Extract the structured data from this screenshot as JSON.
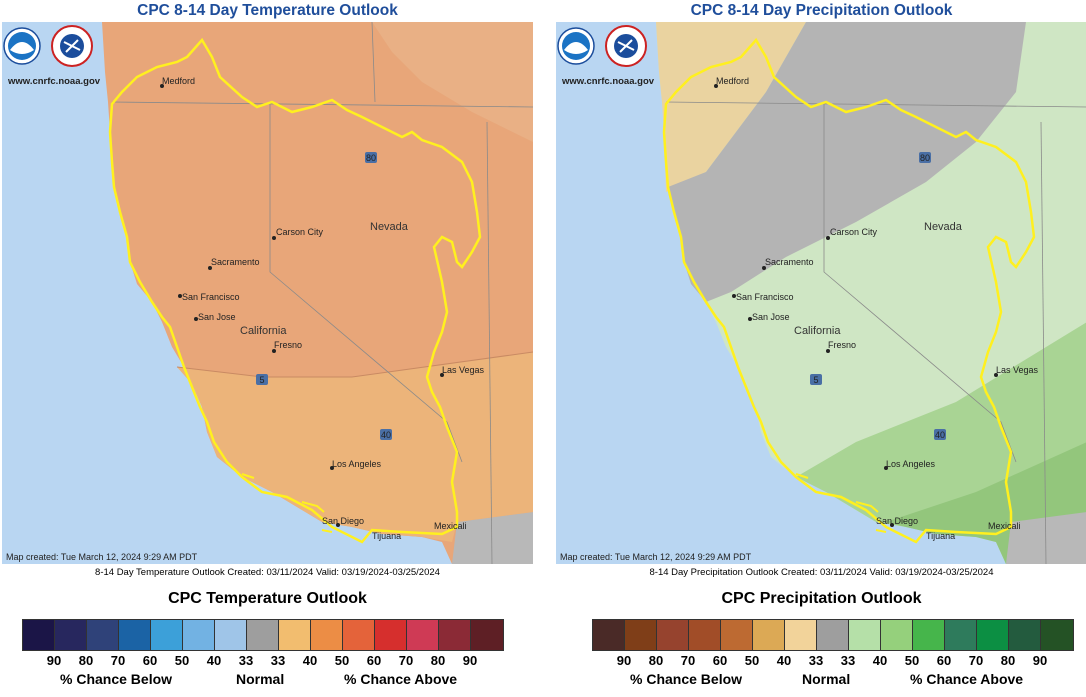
{
  "maps": [
    {
      "title": "CPC 8-14 Day Temperature Outlook",
      "logo_url": "www.cnrfc.noaa.gov",
      "map_created": "Map created: Tue March 12, 2024 9:29 AM PDT",
      "caption": "8-14 Day Temperature Outlook Created: 03/11/2024 Valid: 03/19/2024-03/25/2024"
    },
    {
      "title": "CPC 8-14 Day Precipitation Outlook",
      "logo_url": "www.cnrfc.noaa.gov",
      "map_created": "Map created: Tue March 12, 2024 9:29 AM PDT",
      "caption": "8-14 Day Precipitation Outlook Created: 03/11/2024 Valid: 03/19/2024-03/25/2024"
    }
  ],
  "cities": {
    "medford": "Medford",
    "carson_city": "Carson City",
    "nevada": "Nevada",
    "sacramento": "Sacramento",
    "san_francisco": "San Francisco",
    "san_jose": "San Jose",
    "california": "California",
    "fresno": "Fresno",
    "las_vegas": "Las Vegas",
    "los_angeles": "Los Angeles",
    "san_diego": "San Diego",
    "tijuana": "Tijuana",
    "mexicali": "Mexicali",
    "hw80": "80",
    "hw5": "5",
    "hw40": "40"
  },
  "temp_legend": {
    "title": "CPC Temperature Outlook",
    "colors": [
      "#1b1547",
      "#27275e",
      "#2f4279",
      "#1b63a5",
      "#3ca0d9",
      "#72b2e3",
      "#9fc5e8",
      "#9e9e9e",
      "#f2bd6f",
      "#ec8d45",
      "#e4633a",
      "#d62f2d",
      "#cf3a55",
      "#8b2a36",
      "#5e1f25"
    ],
    "ticks": [
      "90",
      "80",
      "70",
      "60",
      "50",
      "40",
      "33",
      "33",
      "40",
      "50",
      "60",
      "70",
      "80",
      "90"
    ],
    "below_label": "% Chance Below",
    "normal_label": "Normal",
    "above_label": "% Chance Above"
  },
  "precip_legend": {
    "title": "CPC Precipitation Outlook",
    "colors": [
      "#4a2a27",
      "#7f3e18",
      "#96432e",
      "#a14d28",
      "#bd6a32",
      "#dca955",
      "#f2d39a",
      "#9e9e9e",
      "#b5e0a8",
      "#95d07c",
      "#46b54b",
      "#2e7b5c",
      "#0c8f43",
      "#235b3e",
      "#245225"
    ],
    "ticks": [
      "90",
      "80",
      "70",
      "60",
      "50",
      "40",
      "33",
      "33",
      "40",
      "50",
      "60",
      "70",
      "80",
      "90"
    ],
    "below_label": "% Chance Below",
    "normal_label": "Normal",
    "above_label": "% Chance Above"
  }
}
